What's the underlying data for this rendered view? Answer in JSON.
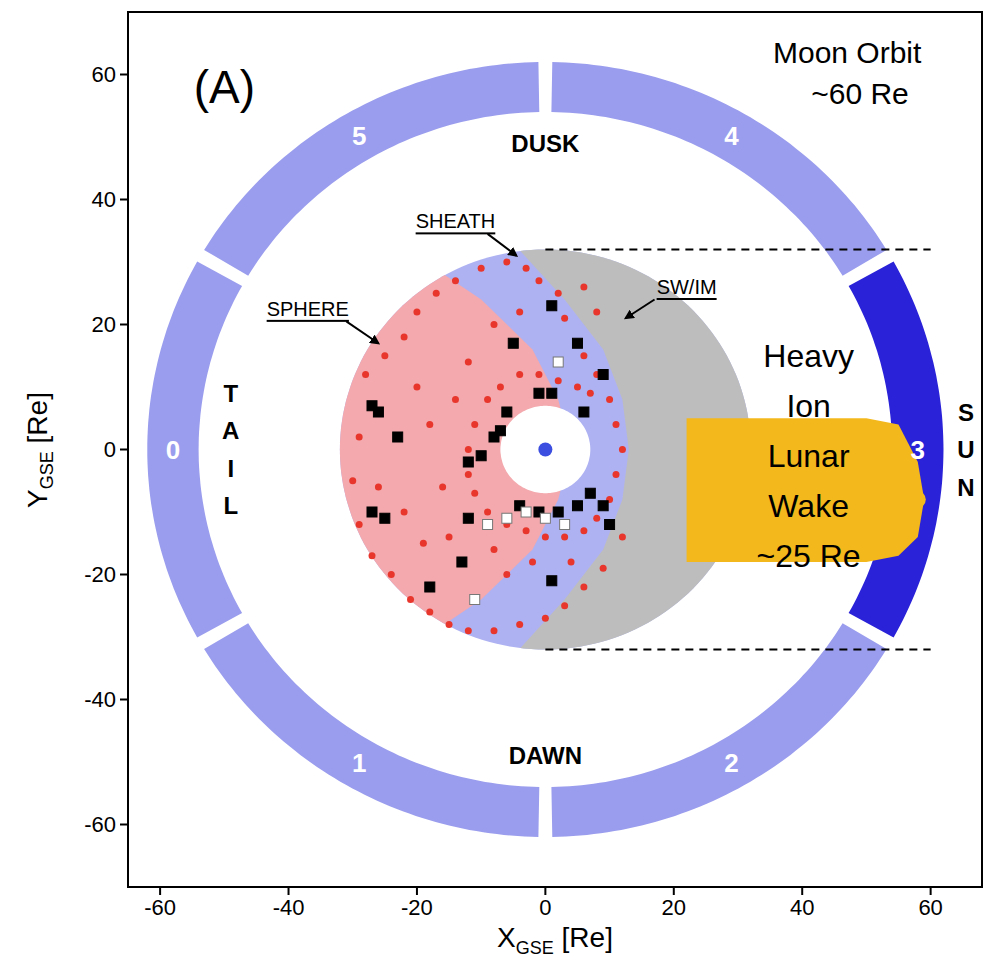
{
  "chart_data": {
    "type": "scatter",
    "panel_label": "(A)",
    "xlabel": {
      "text": "X",
      "subscript": "GSE",
      "unit": "[Re]"
    },
    "ylabel": {
      "text": "Y",
      "subscript": "GSE",
      "unit": "[Re]"
    },
    "xlim": [
      -65,
      68
    ],
    "ylim": [
      -70,
      70
    ],
    "xticks": [
      -60,
      -40,
      -20,
      0,
      20,
      40,
      60
    ],
    "yticks": [
      -60,
      -40,
      -20,
      0,
      20,
      40,
      60
    ],
    "orbit": {
      "label": [
        "Moon Orbit",
        "~60 Re"
      ],
      "inner_radius": 54,
      "outer_radius": 62,
      "sectors": [
        {
          "label": 3,
          "from": -30,
          "to": 30,
          "color": "#2a22d8"
        },
        {
          "label": 4,
          "from": 30,
          "to": 90,
          "color": "#9a9ded"
        },
        {
          "label": 5,
          "from": 90,
          "to": 150,
          "color": "#9a9ded"
        },
        {
          "label": 0,
          "from": 150,
          "to": 210,
          "color": "#9a9ded"
        },
        {
          "label": 1,
          "from": 210,
          "to": 270,
          "color": "#9a9ded"
        },
        {
          "label": 2,
          "from": 270,
          "to": 330,
          "color": "#9a9ded"
        }
      ]
    },
    "directions": {
      "top": "DUSK",
      "bottom": "DAWN",
      "left": "TAIL",
      "right": "SUN"
    },
    "apogee": {
      "radius": 32,
      "hole_radius": 7,
      "earth_color": "#3b4ee0"
    },
    "dashed_lines": [
      {
        "x": [
          0,
          60
        ],
        "y": 32
      },
      {
        "x": [
          0,
          60
        ],
        "y": -32
      }
    ],
    "regions": [
      {
        "label": "SW/IM",
        "color": "#bdbdbd",
        "boundary": {
          "x": [
            -5,
            3,
            9,
            12,
            13,
            12,
            9,
            3,
            -5
          ],
          "y": [
            33,
            24,
            16,
            8,
            0,
            -8,
            -16,
            -24,
            -33
          ]
        }
      },
      {
        "label": "SHEATH",
        "color": "#aeb2f2"
      },
      {
        "label": "SPHERE",
        "color": "#f3a9ad",
        "boundary": {
          "x": [
            -23,
            -10,
            -2,
            2,
            4,
            2,
            -2,
            -10,
            -23
          ],
          "y": [
            33,
            24,
            16,
            8,
            0,
            -8,
            -16,
            -24,
            -33
          ]
        }
      }
    ],
    "wake": {
      "label": [
        "Heavy",
        "Ion",
        "Lunar",
        "Wake",
        "~25 Re"
      ],
      "color": "#f3b81c",
      "x": [
        22,
        50,
        55,
        58,
        59,
        58,
        55,
        50,
        22
      ],
      "y": [
        5,
        5,
        4,
        -2,
        -8,
        -14,
        -17,
        -18,
        -18
      ]
    },
    "moon": {
      "x": 58,
      "y": -8,
      "color": "#f3b81c"
    },
    "series": [
      {
        "marker": "circle",
        "color": "#e8362c",
        "x": [
          -28,
          -25,
          -22,
          -20,
          -17,
          -14,
          -10,
          -6,
          -3,
          -1,
          2,
          3,
          6,
          8,
          10,
          11,
          12,
          11,
          10,
          8,
          6,
          3,
          0,
          -3,
          -6,
          -9,
          -11,
          -12,
          -12,
          -11,
          -9,
          -7,
          -4,
          -1,
          2,
          5,
          7,
          -30,
          -29,
          -27,
          -24,
          -21,
          -18,
          -15,
          -12,
          -8,
          -4,
          0,
          3,
          6,
          9,
          12,
          -20,
          -18,
          -16,
          -22,
          -15,
          -8,
          -12,
          -4,
          6,
          8,
          -29,
          -26,
          -19,
          -6,
          -2,
          4,
          -14,
          -8
        ],
        "y": [
          12,
          15,
          18,
          22,
          25,
          27,
          29,
          30,
          29,
          27,
          25,
          21,
          15,
          12,
          8,
          4,
          0,
          -4,
          -8,
          -11,
          -13,
          -14,
          -14,
          -13,
          -12,
          -10,
          -7,
          -4,
          0,
          4,
          8,
          10,
          12,
          12,
          11,
          10,
          9,
          -5,
          -12,
          -17,
          -20,
          -24,
          -26,
          -28,
          -29,
          -29,
          -28,
          -27,
          -25,
          -22,
          -19,
          -14,
          10,
          4,
          -6,
          -10,
          -14,
          20,
          14,
          22,
          26,
          22,
          2,
          -6,
          -15,
          -20,
          -18,
          -18,
          8,
          -16
        ]
      },
      {
        "marker": "square",
        "color": "#000000",
        "x": [
          -27,
          -26,
          -23,
          -27,
          -25,
          -18,
          -13,
          -12,
          -10,
          -8,
          -7,
          -6,
          -4,
          -1,
          2,
          5,
          9,
          7,
          10,
          9,
          5,
          1,
          -5,
          -1,
          1,
          -12,
          1,
          6
        ],
        "y": [
          7,
          6,
          2,
          -10,
          -11,
          -22,
          -18,
          -2,
          -1,
          2,
          3,
          6,
          -9,
          -10,
          -10,
          -9,
          -9,
          -7,
          -12,
          12,
          17,
          23,
          17,
          9,
          9,
          -11,
          -21,
          6
        ]
      },
      {
        "marker": "square",
        "color": "#ffffff",
        "x": [
          -11,
          -3,
          0,
          2,
          -6,
          3,
          -9
        ],
        "y": [
          -24,
          -10,
          -11,
          14,
          -11,
          -12,
          -12
        ]
      }
    ]
  }
}
